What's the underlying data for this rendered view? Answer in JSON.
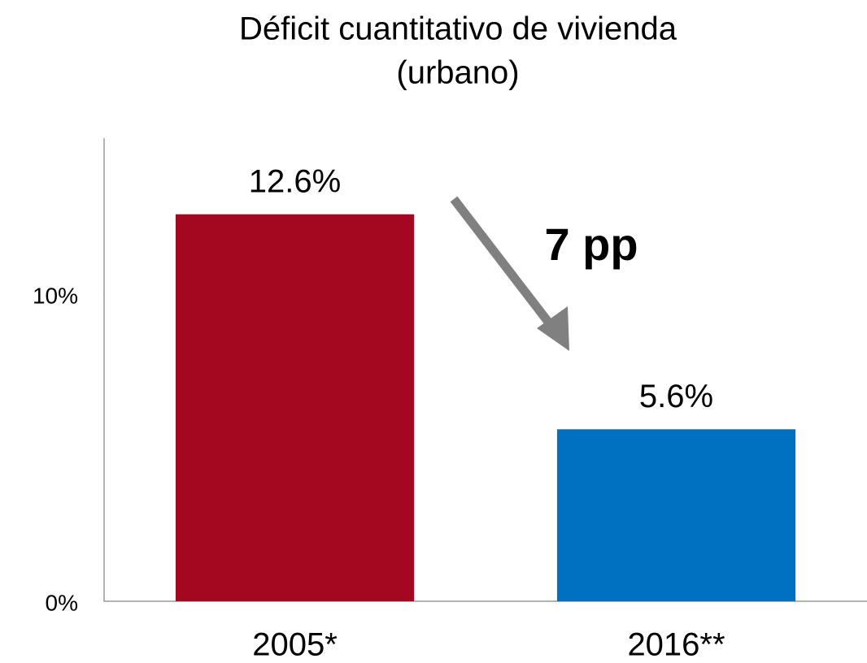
{
  "chart_data": {
    "type": "bar",
    "title": [
      "Déficit cuantitativo de vivienda",
      "(urbano)"
    ],
    "categories": [
      "2005*",
      "2016**"
    ],
    "values": [
      12.6,
      5.6
    ],
    "value_labels": [
      "12.6%",
      "5.6%"
    ],
    "colors": [
      "#a30820",
      "#0070c0"
    ],
    "ylim": [
      0,
      15
    ],
    "yticks": [
      {
        "value": 0,
        "label": "0%"
      },
      {
        "value": 10,
        "label": "10%"
      }
    ],
    "annotation": "7 pp"
  }
}
